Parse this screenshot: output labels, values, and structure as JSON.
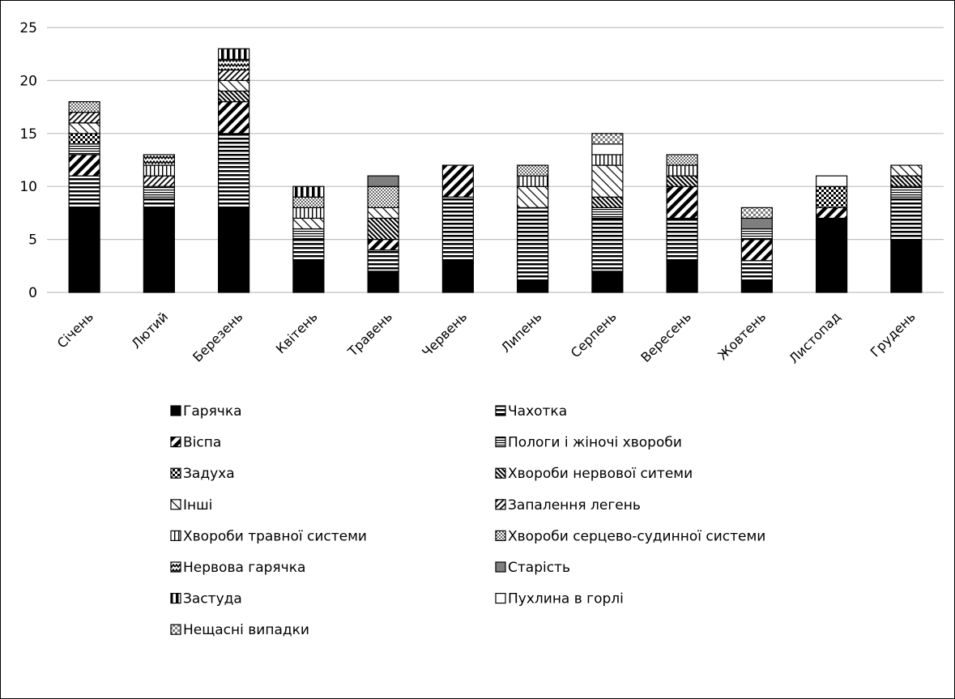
{
  "chart_data": {
    "type": "bar",
    "stacked": true,
    "title": "",
    "xlabel": "",
    "ylabel": "",
    "ylim": [
      0,
      25
    ],
    "yticks": [
      0,
      5,
      10,
      15,
      20,
      25
    ],
    "grid": true,
    "legend_position": "bottom",
    "categories": [
      "Січень",
      "Лютий",
      "Березень",
      "Квітень",
      "Травень",
      "Червень",
      "Липень",
      "Серпень",
      "Вересень",
      "Жовтень",
      "Листопад",
      "Грудень"
    ],
    "series": [
      {
        "name": "Гарячка",
        "pattern": "solid",
        "values": [
          8,
          8,
          8,
          3,
          2,
          3,
          1,
          2,
          3,
          1,
          7,
          5
        ]
      },
      {
        "name": "Чахотка",
        "pattern": "hstripes",
        "values": [
          3,
          1,
          7,
          2,
          2,
          6,
          7,
          5,
          4,
          2,
          0,
          4
        ]
      },
      {
        "name": "Віспа",
        "pattern": "diag-thick",
        "values": [
          2,
          0,
          3,
          0,
          1,
          3,
          0,
          0,
          3,
          2,
          1,
          0
        ]
      },
      {
        "name": "Пологи і жіночі хвороби",
        "pattern": "hstripes-fine",
        "values": [
          1,
          1,
          0,
          1,
          0,
          0,
          0,
          1,
          0,
          1,
          0,
          1
        ]
      },
      {
        "name": "Задуха",
        "pattern": "checker",
        "values": [
          1,
          0,
          0,
          0,
          0,
          0,
          0,
          0,
          0,
          0,
          2,
          0
        ]
      },
      {
        "name": "Хвороби нервової ситеми",
        "pattern": "diag-dense",
        "values": [
          0,
          0,
          1,
          0,
          2,
          0,
          0,
          1,
          1,
          0,
          0,
          1
        ]
      },
      {
        "name": "Інші",
        "pattern": "diag-sparse",
        "values": [
          1,
          0,
          1,
          1,
          1,
          0,
          2,
          3,
          0,
          0,
          0,
          1
        ]
      },
      {
        "name": "Запалення легень",
        "pattern": "diag-medium",
        "values": [
          1,
          1,
          1,
          0,
          0,
          0,
          0,
          0,
          0,
          0,
          0,
          0
        ]
      },
      {
        "name": "Хвороби травної системи",
        "pattern": "vstripes",
        "values": [
          0,
          1,
          0,
          1,
          0,
          0,
          1,
          1,
          1,
          0,
          0,
          0
        ]
      },
      {
        "name": "Хвороби серцево-судинної системи",
        "pattern": "dots",
        "values": [
          1,
          0,
          0,
          1,
          2,
          0,
          1,
          0,
          1,
          0,
          0,
          0
        ]
      },
      {
        "name": "Нервова гарячка",
        "pattern": "zigzag",
        "values": [
          0,
          1,
          1,
          0,
          0,
          0,
          0,
          0,
          0,
          0,
          0,
          0
        ]
      },
      {
        "name": "Старість",
        "pattern": "gray",
        "values": [
          0,
          0,
          0,
          0,
          1,
          0,
          0,
          0,
          0,
          1,
          0,
          0
        ]
      },
      {
        "name": "Застуда",
        "pattern": "vstripes-thick",
        "values": [
          0,
          0,
          1,
          1,
          0,
          0,
          0,
          0,
          0,
          0,
          0,
          0
        ]
      },
      {
        "name": "Пухлина в горлі",
        "pattern": "white",
        "values": [
          0,
          0,
          0,
          0,
          0,
          0,
          0,
          1,
          0,
          0,
          1,
          0
        ]
      },
      {
        "name": "Нещасні випадки",
        "pattern": "gray-checker",
        "values": [
          0,
          0,
          0,
          0,
          0,
          0,
          0,
          1,
          0,
          1,
          0,
          0
        ]
      }
    ]
  },
  "colors": {
    "bar_stroke": "#000000",
    "gridline": "#bfbfbf",
    "gray_fill": "#7f7f7f"
  }
}
